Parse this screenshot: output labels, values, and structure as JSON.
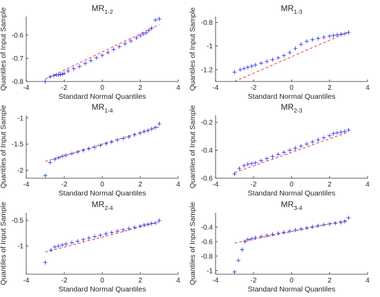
{
  "chart_data": [
    {
      "type": "scatter",
      "title_main": "MR",
      "title_sub": "1-2",
      "xlabel": "Standard Normal Quantiles",
      "ylabel": "Quantiles of Input Sample",
      "xlim": [
        -4,
        4
      ],
      "ylim": [
        -0.8,
        -0.52
      ],
      "xticks": [
        -4,
        -2,
        0,
        2,
        4
      ],
      "yticks": [
        -0.8,
        -0.7,
        -0.6
      ],
      "ytick_labels": [
        "-0.8",
        "-0.7",
        "-0.6"
      ],
      "colors": {
        "points": "#2222ee",
        "reference": "#e0251f"
      },
      "reference_line": {
        "x": [
          -3.0,
          3.0
        ],
        "y": [
          -0.79,
          -0.555
        ]
      },
      "points": {
        "x": [
          -3.0,
          -2.75,
          -2.55,
          -2.4,
          -2.3,
          -2.2,
          -2.1,
          -2.0,
          -1.8,
          -1.5,
          -1.2,
          -0.9,
          -0.6,
          -0.3,
          0.0,
          0.3,
          0.6,
          0.9,
          1.2,
          1.5,
          1.8,
          2.0,
          2.15,
          2.3,
          2.45,
          2.6,
          2.8,
          3.0
        ],
        "y": [
          -0.8,
          -0.78,
          -0.775,
          -0.772,
          -0.772,
          -0.77,
          -0.768,
          -0.765,
          -0.755,
          -0.745,
          -0.735,
          -0.722,
          -0.71,
          -0.698,
          -0.687,
          -0.675,
          -0.662,
          -0.65,
          -0.638,
          -0.625,
          -0.612,
          -0.603,
          -0.595,
          -0.59,
          -0.58,
          -0.57,
          -0.535,
          -0.53
        ]
      }
    },
    {
      "type": "scatter",
      "title_main": "MR",
      "title_sub": "1-3",
      "xlabel": "Standard Normal Quantiles",
      "ylabel": "Quantiles of Input Sample",
      "xlim": [
        -4,
        4
      ],
      "ylim": [
        -1.3,
        -0.75
      ],
      "xticks": [
        -4,
        -2,
        0,
        2,
        4
      ],
      "yticks": [
        -1.2,
        -1.0,
        -0.8
      ],
      "ytick_labels": [
        "-1.2",
        "-1",
        "-0.8"
      ],
      "colors": {
        "points": "#2222ee",
        "reference": "#e0251f"
      },
      "reference_line": {
        "x": [
          -3.0,
          3.0
        ],
        "y": [
          -1.3,
          -0.88
        ]
      },
      "points": {
        "x": [
          -3.0,
          -2.7,
          -2.5,
          -2.3,
          -2.1,
          -1.9,
          -1.6,
          -1.3,
          -1.0,
          -0.7,
          -0.4,
          -0.1,
          0.2,
          0.5,
          0.8,
          1.1,
          1.4,
          1.7,
          2.0,
          2.2,
          2.4,
          2.6,
          2.8,
          3.0
        ],
        "y": [
          -1.22,
          -1.2,
          -1.19,
          -1.18,
          -1.17,
          -1.16,
          -1.145,
          -1.13,
          -1.115,
          -1.1,
          -1.08,
          -1.055,
          -1.02,
          -0.985,
          -0.96,
          -0.945,
          -0.935,
          -0.925,
          -0.915,
          -0.91,
          -0.905,
          -0.9,
          -0.895,
          -0.885
        ]
      }
    },
    {
      "type": "scatter",
      "title_main": "MR",
      "title_sub": "1-4",
      "xlabel": "Standard Normal Quantiles",
      "ylabel": "Quantiles of Input Sample",
      "xlim": [
        -4,
        4
      ],
      "ylim": [
        -2.15,
        -0.95
      ],
      "xticks": [
        -4,
        -2,
        0,
        2,
        4
      ],
      "yticks": [
        -2.0,
        -1.5,
        -1.0
      ],
      "ytick_labels": [
        "-2",
        "-1.5",
        "-1"
      ],
      "colors": {
        "points": "#2222ee",
        "reference": "#e0251f"
      },
      "reference_line": {
        "x": [
          -3.0,
          3.0
        ],
        "y": [
          -1.83,
          -1.17
        ]
      },
      "points": {
        "x": [
          -3.0,
          -2.75,
          -2.5,
          -2.3,
          -2.1,
          -1.9,
          -1.6,
          -1.3,
          -1.0,
          -0.7,
          -0.4,
          -0.1,
          0.2,
          0.5,
          0.8,
          1.1,
          1.4,
          1.7,
          2.0,
          2.2,
          2.4,
          2.6,
          2.8,
          3.0
        ],
        "y": [
          -2.1,
          -1.85,
          -1.79,
          -1.76,
          -1.73,
          -1.71,
          -1.68,
          -1.65,
          -1.62,
          -1.59,
          -1.56,
          -1.52,
          -1.49,
          -1.46,
          -1.42,
          -1.39,
          -1.36,
          -1.32,
          -1.29,
          -1.26,
          -1.24,
          -1.21,
          -1.18,
          -1.11
        ]
      }
    },
    {
      "type": "scatter",
      "title_main": "MR",
      "title_sub": "2-3",
      "xlabel": "Standard Normal Quantiles",
      "ylabel": "Quantiles of Input Sample",
      "xlim": [
        -4,
        4
      ],
      "ylim": [
        -0.6,
        -0.15
      ],
      "xticks": [
        -4,
        -2,
        0,
        2,
        4
      ],
      "yticks": [
        -0.6,
        -0.4,
        -0.2
      ],
      "ytick_labels": [
        "-0.6",
        "-0.4",
        "-0.2"
      ],
      "colors": {
        "points": "#2222ee",
        "reference": "#e0251f"
      },
      "reference_line": {
        "x": [
          -3.0,
          3.0
        ],
        "y": [
          -0.56,
          -0.27
        ]
      },
      "points": {
        "x": [
          -3.0,
          -2.75,
          -2.5,
          -2.3,
          -2.1,
          -1.9,
          -1.6,
          -1.3,
          -1.0,
          -0.7,
          -0.4,
          -0.1,
          0.2,
          0.5,
          0.8,
          1.1,
          1.4,
          1.7,
          2.0,
          2.2,
          2.4,
          2.6,
          2.8,
          3.0
        ],
        "y": [
          -0.57,
          -0.53,
          -0.51,
          -0.5,
          -0.495,
          -0.49,
          -0.475,
          -0.46,
          -0.445,
          -0.43,
          -0.415,
          -0.4,
          -0.385,
          -0.37,
          -0.355,
          -0.34,
          -0.325,
          -0.31,
          -0.295,
          -0.28,
          -0.275,
          -0.27,
          -0.265,
          -0.255
        ]
      }
    },
    {
      "type": "scatter",
      "title_main": "MR",
      "title_sub": "2-4",
      "xlabel": "Standard Normal Quantiles",
      "ylabel": "Quantiles of Input Sample",
      "xlim": [
        -4,
        4
      ],
      "ylim": [
        -1.55,
        -0.35
      ],
      "xticks": [
        -4,
        -2,
        0,
        2,
        4
      ],
      "yticks": [
        -1.0,
        -0.5
      ],
      "ytick_labels": [
        "-1",
        "-0.5"
      ],
      "colors": {
        "points": "#2222ee",
        "reference": "#e0251f"
      },
      "reference_line": {
        "x": [
          -3.0,
          3.0
        ],
        "y": [
          -1.12,
          -0.53
        ]
      },
      "points": {
        "x": [
          -3.0,
          -2.7,
          -2.5,
          -2.3,
          -2.1,
          -1.9,
          -1.6,
          -1.3,
          -1.0,
          -0.7,
          -0.4,
          -0.1,
          0.2,
          0.5,
          0.8,
          1.1,
          1.4,
          1.7,
          2.0,
          2.2,
          2.4,
          2.6,
          2.8,
          3.0
        ],
        "y": [
          -1.32,
          -1.08,
          -1.02,
          -1.0,
          -0.98,
          -0.96,
          -0.935,
          -0.905,
          -0.875,
          -0.845,
          -0.815,
          -0.79,
          -0.76,
          -0.735,
          -0.71,
          -0.685,
          -0.66,
          -0.635,
          -0.61,
          -0.59,
          -0.575,
          -0.56,
          -0.55,
          -0.5
        ]
      }
    },
    {
      "type": "scatter",
      "title_main": "MR",
      "title_sub": "3-4",
      "xlabel": "Standard Normal Quantiles",
      "ylabel": "Quantiles of Input Sample",
      "xlim": [
        -4,
        4
      ],
      "ylim": [
        -1.05,
        -0.2
      ],
      "xticks": [
        -4,
        -2,
        0,
        2,
        4
      ],
      "yticks": [
        -1.0,
        -0.8,
        -0.6,
        -0.4
      ],
      "ytick_labels": [
        "-1",
        "-0.8",
        "-0.6",
        "-0.4"
      ],
      "colors": {
        "points": "#2222ee",
        "reference": "#e0251f"
      },
      "reference_line": {
        "x": [
          -3.0,
          3.0
        ],
        "y": [
          -0.62,
          -0.3
        ]
      },
      "points": {
        "x": [
          -3.0,
          -2.8,
          -2.6,
          -2.45,
          -2.3,
          -2.1,
          -1.9,
          -1.6,
          -1.3,
          -1.0,
          -0.7,
          -0.4,
          -0.1,
          0.2,
          0.5,
          0.8,
          1.1,
          1.4,
          1.7,
          2.0,
          2.3,
          2.6,
          2.8,
          3.0
        ],
        "y": [
          -1.02,
          -0.86,
          -0.71,
          -0.6,
          -0.57,
          -0.56,
          -0.545,
          -0.53,
          -0.515,
          -0.5,
          -0.485,
          -0.47,
          -0.455,
          -0.44,
          -0.425,
          -0.41,
          -0.395,
          -0.38,
          -0.365,
          -0.355,
          -0.345,
          -0.335,
          -0.32,
          -0.27
        ]
      }
    }
  ]
}
